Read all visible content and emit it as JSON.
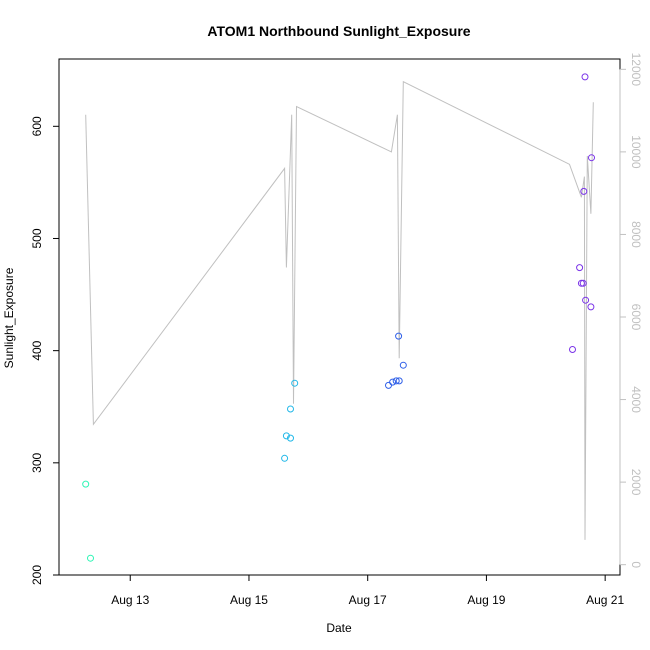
{
  "chart_data": {
    "type": "scatter",
    "title": "ATOM1 Northbound Sunlight_Exposure",
    "xlabel": "Date",
    "ylabel": "Sunlight_Exposure",
    "x_ticks": [
      "Aug 13",
      "Aug 15",
      "Aug 17",
      "Aug 19",
      "Aug 21"
    ],
    "x_tick_values": [
      13,
      15,
      17,
      19,
      21
    ],
    "xlim": [
      11.8,
      21.25
    ],
    "ylim": [
      200,
      660
    ],
    "y_ticks": [
      200,
      300,
      400,
      500,
      600
    ],
    "y2_ticks": [
      0,
      2000,
      4000,
      6000,
      8000,
      10000,
      12000
    ],
    "y2lim": [
      -250,
      12250
    ],
    "grid": false,
    "series": [
      {
        "color": "#2ef5b5",
        "points": [
          [
            12.25,
            281
          ],
          [
            12.33,
            215
          ]
        ]
      },
      {
        "color": "#22b8e8",
        "points": [
          [
            15.6,
            304
          ],
          [
            15.63,
            324
          ],
          [
            15.7,
            322
          ],
          [
            15.7,
            348
          ],
          [
            15.77,
            371
          ]
        ]
      },
      {
        "color": "#3060e8",
        "points": [
          [
            17.35,
            369
          ],
          [
            17.42,
            372
          ],
          [
            17.48,
            373
          ],
          [
            17.53,
            373
          ],
          [
            17.52,
            413
          ],
          [
            17.6,
            387
          ]
        ]
      },
      {
        "color": "#7a33e8",
        "points": [
          [
            20.45,
            401
          ],
          [
            20.57,
            474
          ],
          [
            20.6,
            460
          ],
          [
            20.63,
            460
          ],
          [
            20.64,
            542
          ],
          [
            20.67,
            445
          ],
          [
            20.66,
            644
          ],
          [
            20.76,
            439
          ],
          [
            20.77,
            572
          ]
        ]
      }
    ],
    "secondary_line": {
      "color": "#c0c0c0",
      "points": [
        [
          12.25,
          10900
        ],
        [
          12.38,
          3400
        ],
        [
          15.6,
          9600
        ],
        [
          15.63,
          7200
        ],
        [
          15.72,
          10900
        ],
        [
          15.75,
          3900
        ],
        [
          15.8,
          11100
        ],
        [
          17.4,
          10000
        ],
        [
          17.5,
          10900
        ],
        [
          17.53,
          5000
        ],
        [
          17.6,
          11700
        ],
        [
          20.4,
          9700
        ],
        [
          20.6,
          8900
        ],
        [
          20.65,
          9400
        ],
        [
          20.66,
          600
        ],
        [
          20.7,
          9900
        ],
        [
          20.76,
          8500
        ],
        [
          20.8,
          11200
        ]
      ]
    }
  }
}
